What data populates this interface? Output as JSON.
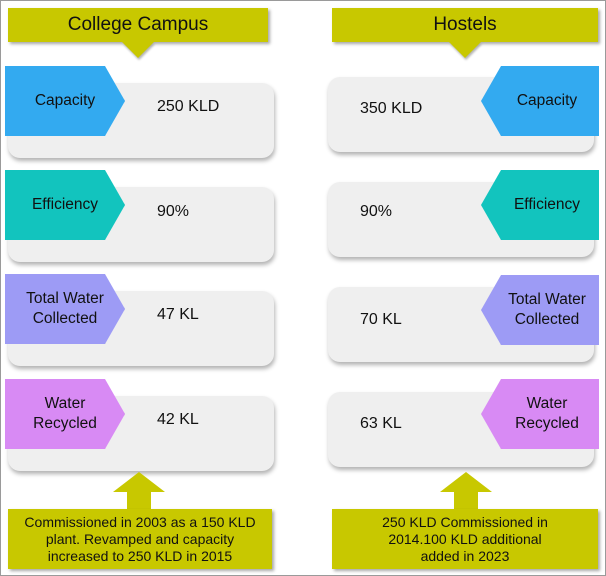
{
  "colors": {
    "olive": "#c8c800",
    "capacity": "#33aaf0",
    "efficiency": "#12c4be",
    "water_collected": "#9d9bf5",
    "water_recycled": "#d88af4",
    "card": "#efefef"
  },
  "college": {
    "title": "College Campus",
    "rows": [
      {
        "label": "Capacity",
        "value": "250 KLD"
      },
      {
        "label": "Efficiency",
        "value": "90%"
      },
      {
        "label_line1": "Total Water",
        "label_line2": "Collected",
        "value": "47 KL"
      },
      {
        "label_line1": "Water",
        "label_line2": "Recycled",
        "value": "42 KL"
      }
    ],
    "note_lines": [
      "Commissioned in 2003 as a 150 KLD",
      "plant. Revamped and capacity",
      "increased to 250 KLD in 2015"
    ]
  },
  "hostels": {
    "title": "Hostels",
    "rows": [
      {
        "label": "Capacity",
        "value": "350 KLD"
      },
      {
        "label": "Efficiency",
        "value": "90%"
      },
      {
        "label_line1": "Total Water",
        "label_line2": "Collected",
        "value": "70 KL"
      },
      {
        "label_line1": "Water",
        "label_line2": "Recycled",
        "value": "63 KL"
      }
    ],
    "note_lines": [
      "250 KLD Commissioned in",
      "2014.100 KLD additional",
      "added in 2023"
    ]
  }
}
